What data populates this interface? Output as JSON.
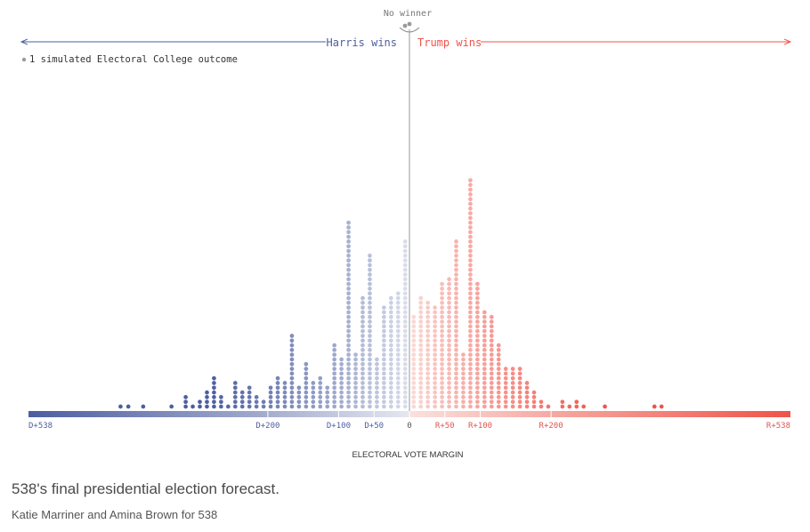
{
  "chart_data": {
    "type": "dot-histogram",
    "title": "538's final presidential election forecast.",
    "xlabel": "ELECTORAL VOTE MARGIN",
    "xlim": [
      -538,
      538
    ],
    "ticks": [
      {
        "value": -538,
        "label": "D+538"
      },
      {
        "value": -200,
        "label": "D+200"
      },
      {
        "value": -100,
        "label": "D+100"
      },
      {
        "value": -50,
        "label": "D+50"
      },
      {
        "value": 0,
        "label": "0"
      },
      {
        "value": 50,
        "label": "R+50"
      },
      {
        "value": 100,
        "label": "R+100"
      },
      {
        "value": 200,
        "label": "R+200"
      },
      {
        "value": 538,
        "label": "R+538"
      }
    ],
    "side_labels": {
      "left": "Harris wins",
      "right": "Trump wins",
      "center": "No winner"
    },
    "legend": "1 simulated Electoral College outcome",
    "colors": {
      "dem": "#4d5ea0",
      "rep": "#ef5349",
      "neutral": "#9a9a9a"
    },
    "tie_dots": 2,
    "bins": [
      {
        "margin": -408,
        "count": 1
      },
      {
        "margin": -397,
        "count": 1
      },
      {
        "margin": -376,
        "count": 1
      },
      {
        "margin": -336,
        "count": 1
      },
      {
        "margin": -316,
        "count": 3
      },
      {
        "margin": -306,
        "count": 1
      },
      {
        "margin": -296,
        "count": 2
      },
      {
        "margin": -286,
        "count": 4
      },
      {
        "margin": -276,
        "count": 7
      },
      {
        "margin": -266,
        "count": 3
      },
      {
        "margin": -256,
        "count": 1
      },
      {
        "margin": -246,
        "count": 6
      },
      {
        "margin": -236,
        "count": 4
      },
      {
        "margin": -226,
        "count": 5
      },
      {
        "margin": -216,
        "count": 3
      },
      {
        "margin": -206,
        "count": 2
      },
      {
        "margin": -196,
        "count": 5
      },
      {
        "margin": -186,
        "count": 7
      },
      {
        "margin": -176,
        "count": 6
      },
      {
        "margin": -166,
        "count": 16
      },
      {
        "margin": -156,
        "count": 5
      },
      {
        "margin": -146,
        "count": 10
      },
      {
        "margin": -136,
        "count": 6
      },
      {
        "margin": -126,
        "count": 7
      },
      {
        "margin": -116,
        "count": 5
      },
      {
        "margin": -106,
        "count": 14
      },
      {
        "margin": -96,
        "count": 11
      },
      {
        "margin": -86,
        "count": 40
      },
      {
        "margin": -76,
        "count": 12
      },
      {
        "margin": -66,
        "count": 24
      },
      {
        "margin": -56,
        "count": 33
      },
      {
        "margin": -46,
        "count": 11
      },
      {
        "margin": -36,
        "count": 22
      },
      {
        "margin": -26,
        "count": 24
      },
      {
        "margin": -16,
        "count": 25
      },
      {
        "margin": -6,
        "count": 36
      },
      {
        "margin": 6,
        "count": 20
      },
      {
        "margin": 16,
        "count": 24
      },
      {
        "margin": 26,
        "count": 23
      },
      {
        "margin": 36,
        "count": 22
      },
      {
        "margin": 46,
        "count": 27
      },
      {
        "margin": 56,
        "count": 28
      },
      {
        "margin": 66,
        "count": 36
      },
      {
        "margin": 76,
        "count": 12
      },
      {
        "margin": 86,
        "count": 49
      },
      {
        "margin": 96,
        "count": 27
      },
      {
        "margin": 106,
        "count": 21
      },
      {
        "margin": 116,
        "count": 20
      },
      {
        "margin": 126,
        "count": 14
      },
      {
        "margin": 136,
        "count": 9
      },
      {
        "margin": 146,
        "count": 9
      },
      {
        "margin": 156,
        "count": 9
      },
      {
        "margin": 166,
        "count": 6
      },
      {
        "margin": 176,
        "count": 4
      },
      {
        "margin": 186,
        "count": 2
      },
      {
        "margin": 196,
        "count": 1
      },
      {
        "margin": 216,
        "count": 2
      },
      {
        "margin": 226,
        "count": 1
      },
      {
        "margin": 236,
        "count": 2
      },
      {
        "margin": 246,
        "count": 1
      },
      {
        "margin": 276,
        "count": 1
      },
      {
        "margin": 346,
        "count": 1
      },
      {
        "margin": 356,
        "count": 1
      }
    ]
  },
  "caption": "538's final presidential election forecast.",
  "credit": "Katie Marriner and Amina Brown for 538"
}
